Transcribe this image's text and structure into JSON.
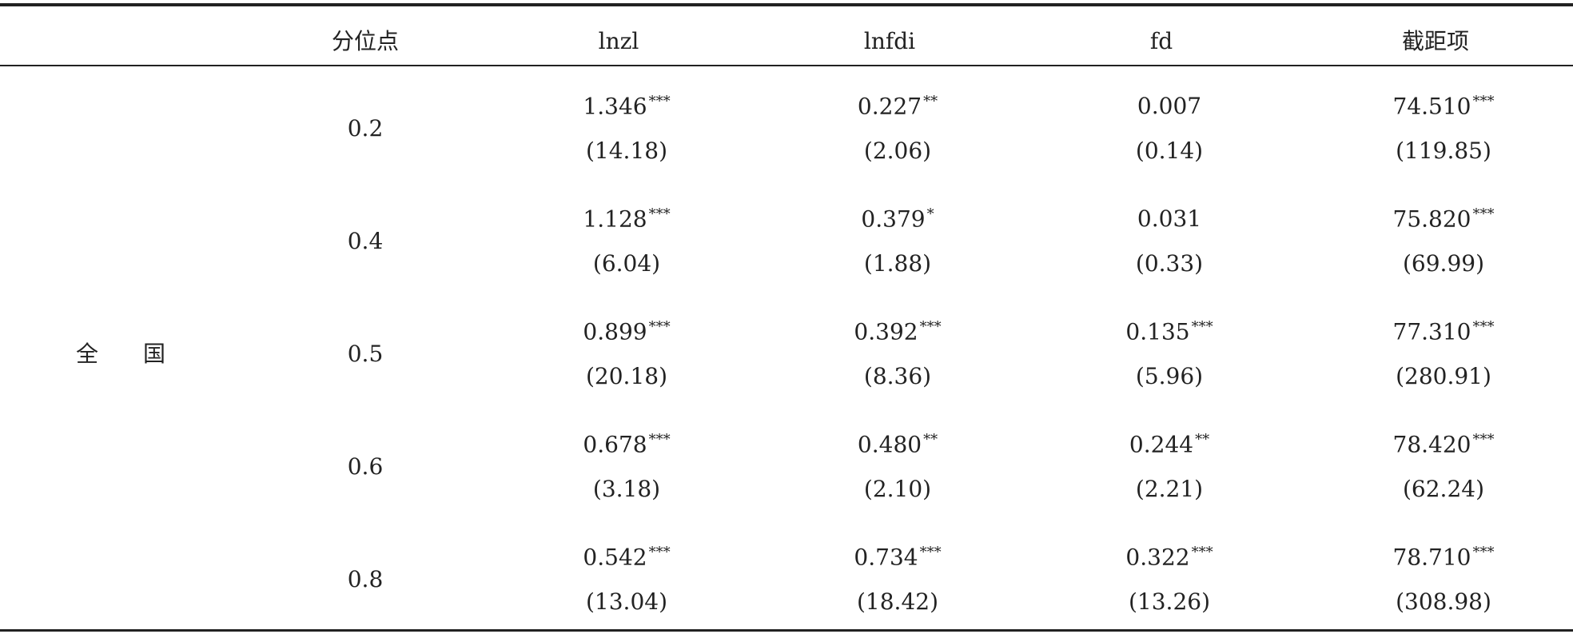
{
  "table": {
    "columns": [
      "分位点",
      "lnzl",
      "lnfdi",
      "fd",
      "截距项"
    ],
    "group": "全　　国",
    "rows": [
      {
        "quantile": "0.2",
        "cells": [
          {
            "coef": "1.346",
            "stars": "***",
            "t": "(14.18)"
          },
          {
            "coef": "0.227",
            "stars": "**",
            "t": "(2.06)"
          },
          {
            "coef": "0.007",
            "t": "(0.14)"
          },
          {
            "coef": "74.510",
            "stars": "***",
            "t": "(119.85)"
          }
        ]
      },
      {
        "quantile": "0.4",
        "cells": [
          {
            "coef": "1.128",
            "stars": "***",
            "t": "(6.04)"
          },
          {
            "coef": "0.379",
            "stars": "*",
            "t": "(1.88)"
          },
          {
            "coef": "0.031",
            "t": "(0.33)"
          },
          {
            "coef": "75.820",
            "stars": "***",
            "t": "(69.99)"
          }
        ]
      },
      {
        "quantile": "0.5",
        "cells": [
          {
            "coef": "0.899",
            "stars": "***",
            "t": "(20.18)"
          },
          {
            "coef": "0.392",
            "stars": "***",
            "t": "(8.36)"
          },
          {
            "coef": "0.135",
            "stars": "***",
            "t": "(5.96)"
          },
          {
            "coef": "77.310",
            "stars": "***",
            "t": "(280.91)"
          }
        ]
      },
      {
        "quantile": "0.6",
        "cells": [
          {
            "coef": "0.678",
            "stars": "***",
            "t": "(3.18)"
          },
          {
            "coef": "0.480",
            "stars": "**",
            "t": "(2.10)"
          },
          {
            "coef": "0.244",
            "stars": "**",
            "t": "(2.21)"
          },
          {
            "coef": "78.420",
            "stars": "***",
            "t": "(62.24)"
          }
        ]
      },
      {
        "quantile": "0.8",
        "cells": [
          {
            "coef": "0.542",
            "stars": "***",
            "t": "(13.04)"
          },
          {
            "coef": "0.734",
            "stars": "***",
            "t": "(18.42)"
          },
          {
            "coef": "0.322",
            "stars": "***",
            "t": "(13.26)"
          },
          {
            "coef": "78.710",
            "stars": "***",
            "t": "(308.98)"
          }
        ]
      }
    ]
  }
}
